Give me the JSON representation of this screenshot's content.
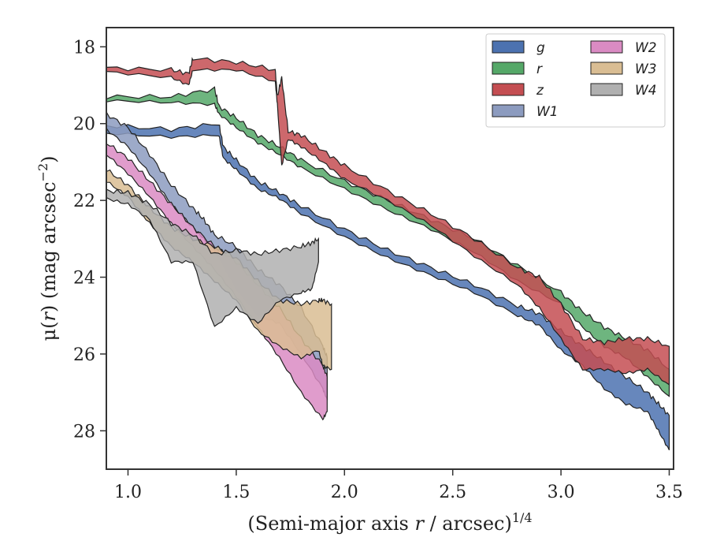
{
  "chart_data": {
    "type": "area",
    "xlabel_main": "(Semi-major axis ",
    "xlabel_var": "r",
    "xlabel_rest": " / arcsec)",
    "xlabel_sup": "1/4",
    "ylabel_pre": "μ(",
    "ylabel_var": "r",
    "ylabel_rest": ") (mag arcsec",
    "ylabel_sup": "−2",
    "ylabel_close": ")",
    "xlim": [
      0.9,
      3.52
    ],
    "ylim": [
      29.0,
      17.5
    ],
    "y_inverted": true,
    "xticks": [
      1.0,
      1.5,
      2.0,
      2.5,
      3.0,
      3.5
    ],
    "xtick_labels": [
      "1.0",
      "1.5",
      "2.0",
      "2.5",
      "3.0",
      "3.5"
    ],
    "yticks": [
      18,
      20,
      22,
      24,
      26,
      28
    ],
    "ytick_labels": [
      "18",
      "20",
      "22",
      "24",
      "26",
      "28"
    ],
    "grid": false,
    "legend_placement": "top-right",
    "legend_columns": 2,
    "series": [
      {
        "name": "g",
        "color": "#4c72b0",
        "points": [
          [
            0.9,
            20.05,
            20.25
          ],
          [
            1.2,
            20.15,
            20.35
          ],
          [
            1.42,
            20.0,
            20.3
          ],
          [
            1.44,
            20.6,
            20.9
          ],
          [
            1.5,
            20.95,
            21.2
          ],
          [
            1.6,
            21.5,
            21.7
          ],
          [
            1.7,
            21.8,
            21.95
          ],
          [
            1.8,
            22.15,
            22.35
          ],
          [
            2.0,
            22.75,
            22.95
          ],
          [
            2.2,
            23.3,
            23.5
          ],
          [
            2.4,
            23.75,
            23.95
          ],
          [
            2.6,
            24.2,
            24.4
          ],
          [
            2.8,
            24.75,
            25.0
          ],
          [
            2.9,
            24.95,
            25.25
          ],
          [
            3.0,
            25.4,
            25.9
          ],
          [
            3.1,
            25.8,
            26.3
          ],
          [
            3.2,
            26.2,
            26.9
          ],
          [
            3.3,
            26.6,
            27.3
          ],
          [
            3.4,
            27.0,
            27.5
          ],
          [
            3.45,
            27.3,
            28.0
          ],
          [
            3.5,
            27.6,
            28.5
          ]
        ]
      },
      {
        "name": "r",
        "color": "#55a868",
        "points": [
          [
            0.9,
            19.3,
            19.4
          ],
          [
            1.2,
            19.3,
            19.45
          ],
          [
            1.4,
            19.1,
            19.5
          ],
          [
            1.42,
            19.55,
            19.75
          ],
          [
            1.5,
            19.85,
            20.1
          ],
          [
            1.6,
            20.3,
            20.5
          ],
          [
            1.7,
            20.6,
            20.8
          ],
          [
            1.8,
            20.95,
            21.15
          ],
          [
            2.0,
            21.5,
            21.7
          ],
          [
            2.2,
            22.0,
            22.25
          ],
          [
            2.4,
            22.5,
            22.75
          ],
          [
            2.6,
            23.0,
            23.35
          ],
          [
            2.8,
            23.7,
            24.1
          ],
          [
            3.0,
            24.4,
            24.7
          ],
          [
            3.1,
            24.9,
            25.3
          ],
          [
            3.2,
            25.3,
            25.8
          ],
          [
            3.3,
            25.6,
            26.1
          ],
          [
            3.4,
            25.9,
            26.6
          ],
          [
            3.5,
            26.4,
            27.1
          ]
        ]
      },
      {
        "name": "z",
        "color": "#c44e52",
        "points": [
          [
            0.9,
            18.55,
            18.65
          ],
          [
            1.2,
            18.6,
            18.8
          ],
          [
            1.28,
            18.7,
            19.0
          ],
          [
            1.3,
            18.3,
            18.6
          ],
          [
            1.5,
            18.4,
            18.6
          ],
          [
            1.68,
            18.6,
            18.9
          ],
          [
            1.69,
            19.3,
            19.5
          ],
          [
            1.71,
            18.8,
            21.1
          ],
          [
            1.74,
            20.2,
            20.4
          ],
          [
            1.8,
            20.3,
            20.6
          ],
          [
            1.9,
            20.7,
            21.0
          ],
          [
            2.0,
            21.1,
            21.45
          ],
          [
            2.2,
            21.75,
            22.0
          ],
          [
            2.4,
            22.35,
            22.65
          ],
          [
            2.6,
            23.0,
            23.45
          ],
          [
            2.8,
            23.75,
            24.2
          ],
          [
            2.9,
            24.0,
            24.8
          ],
          [
            3.0,
            24.7,
            25.6
          ],
          [
            3.1,
            25.6,
            26.4
          ],
          [
            3.2,
            25.7,
            26.4
          ],
          [
            3.3,
            25.6,
            26.5
          ],
          [
            3.4,
            25.6,
            26.4
          ],
          [
            3.5,
            25.8,
            26.8
          ]
        ]
      },
      {
        "name": "W1",
        "color": "#8c9bbf",
        "points": [
          [
            0.9,
            19.75,
            20.15
          ],
          [
            1.0,
            20.1,
            20.6
          ],
          [
            1.1,
            20.8,
            21.3
          ],
          [
            1.2,
            21.6,
            22.1
          ],
          [
            1.3,
            22.2,
            22.7
          ],
          [
            1.35,
            22.5,
            23.0
          ],
          [
            1.4,
            22.9,
            23.3
          ],
          [
            1.5,
            23.2,
            24.3
          ],
          [
            1.6,
            23.8,
            25.0
          ],
          [
            1.7,
            24.2,
            25.2
          ],
          [
            1.8,
            24.8,
            26.0
          ],
          [
            1.9,
            25.8,
            26.9
          ],
          [
            1.92,
            26.1,
            27.2
          ]
        ]
      },
      {
        "name": "W2",
        "color": "#da8bc3",
        "points": [
          [
            0.9,
            20.5,
            20.8
          ],
          [
            1.0,
            20.9,
            21.3
          ],
          [
            1.1,
            21.5,
            21.9
          ],
          [
            1.2,
            22.1,
            22.6
          ],
          [
            1.3,
            22.7,
            23.2
          ],
          [
            1.4,
            23.2,
            23.8
          ],
          [
            1.5,
            23.6,
            24.5
          ],
          [
            1.6,
            24.2,
            25.3
          ],
          [
            1.7,
            24.8,
            26.1
          ],
          [
            1.8,
            25.6,
            27.0
          ],
          [
            1.9,
            26.3,
            27.7
          ],
          [
            1.92,
            26.6,
            27.5
          ]
        ]
      },
      {
        "name": "W3",
        "color": "#d9bd93",
        "points": [
          [
            0.9,
            21.2,
            21.5
          ],
          [
            1.0,
            21.6,
            21.9
          ],
          [
            1.1,
            22.2,
            22.6
          ],
          [
            1.2,
            22.7,
            23.2
          ],
          [
            1.3,
            23.0,
            23.6
          ],
          [
            1.4,
            23.2,
            24.1
          ],
          [
            1.5,
            23.5,
            24.6
          ],
          [
            1.6,
            24.1,
            25.4
          ],
          [
            1.7,
            24.6,
            25.8
          ],
          [
            1.8,
            24.7,
            26.1
          ],
          [
            1.88,
            24.6,
            25.9
          ],
          [
            1.9,
            24.6,
            26.3
          ],
          [
            1.94,
            24.7,
            26.4
          ]
        ]
      },
      {
        "name": "W4",
        "color": "#b0b0b0",
        "points": [
          [
            0.9,
            21.75,
            21.95
          ],
          [
            1.0,
            21.8,
            22.1
          ],
          [
            1.1,
            22.1,
            22.5
          ],
          [
            1.2,
            22.6,
            23.6
          ],
          [
            1.3,
            22.9,
            23.6
          ],
          [
            1.4,
            23.4,
            25.3
          ],
          [
            1.5,
            23.3,
            24.8
          ],
          [
            1.6,
            23.4,
            25.2
          ],
          [
            1.7,
            23.3,
            24.6
          ],
          [
            1.8,
            23.2,
            24.4
          ],
          [
            1.85,
            23.1,
            24.3
          ],
          [
            1.88,
            23.0,
            23.6
          ]
        ]
      }
    ]
  }
}
